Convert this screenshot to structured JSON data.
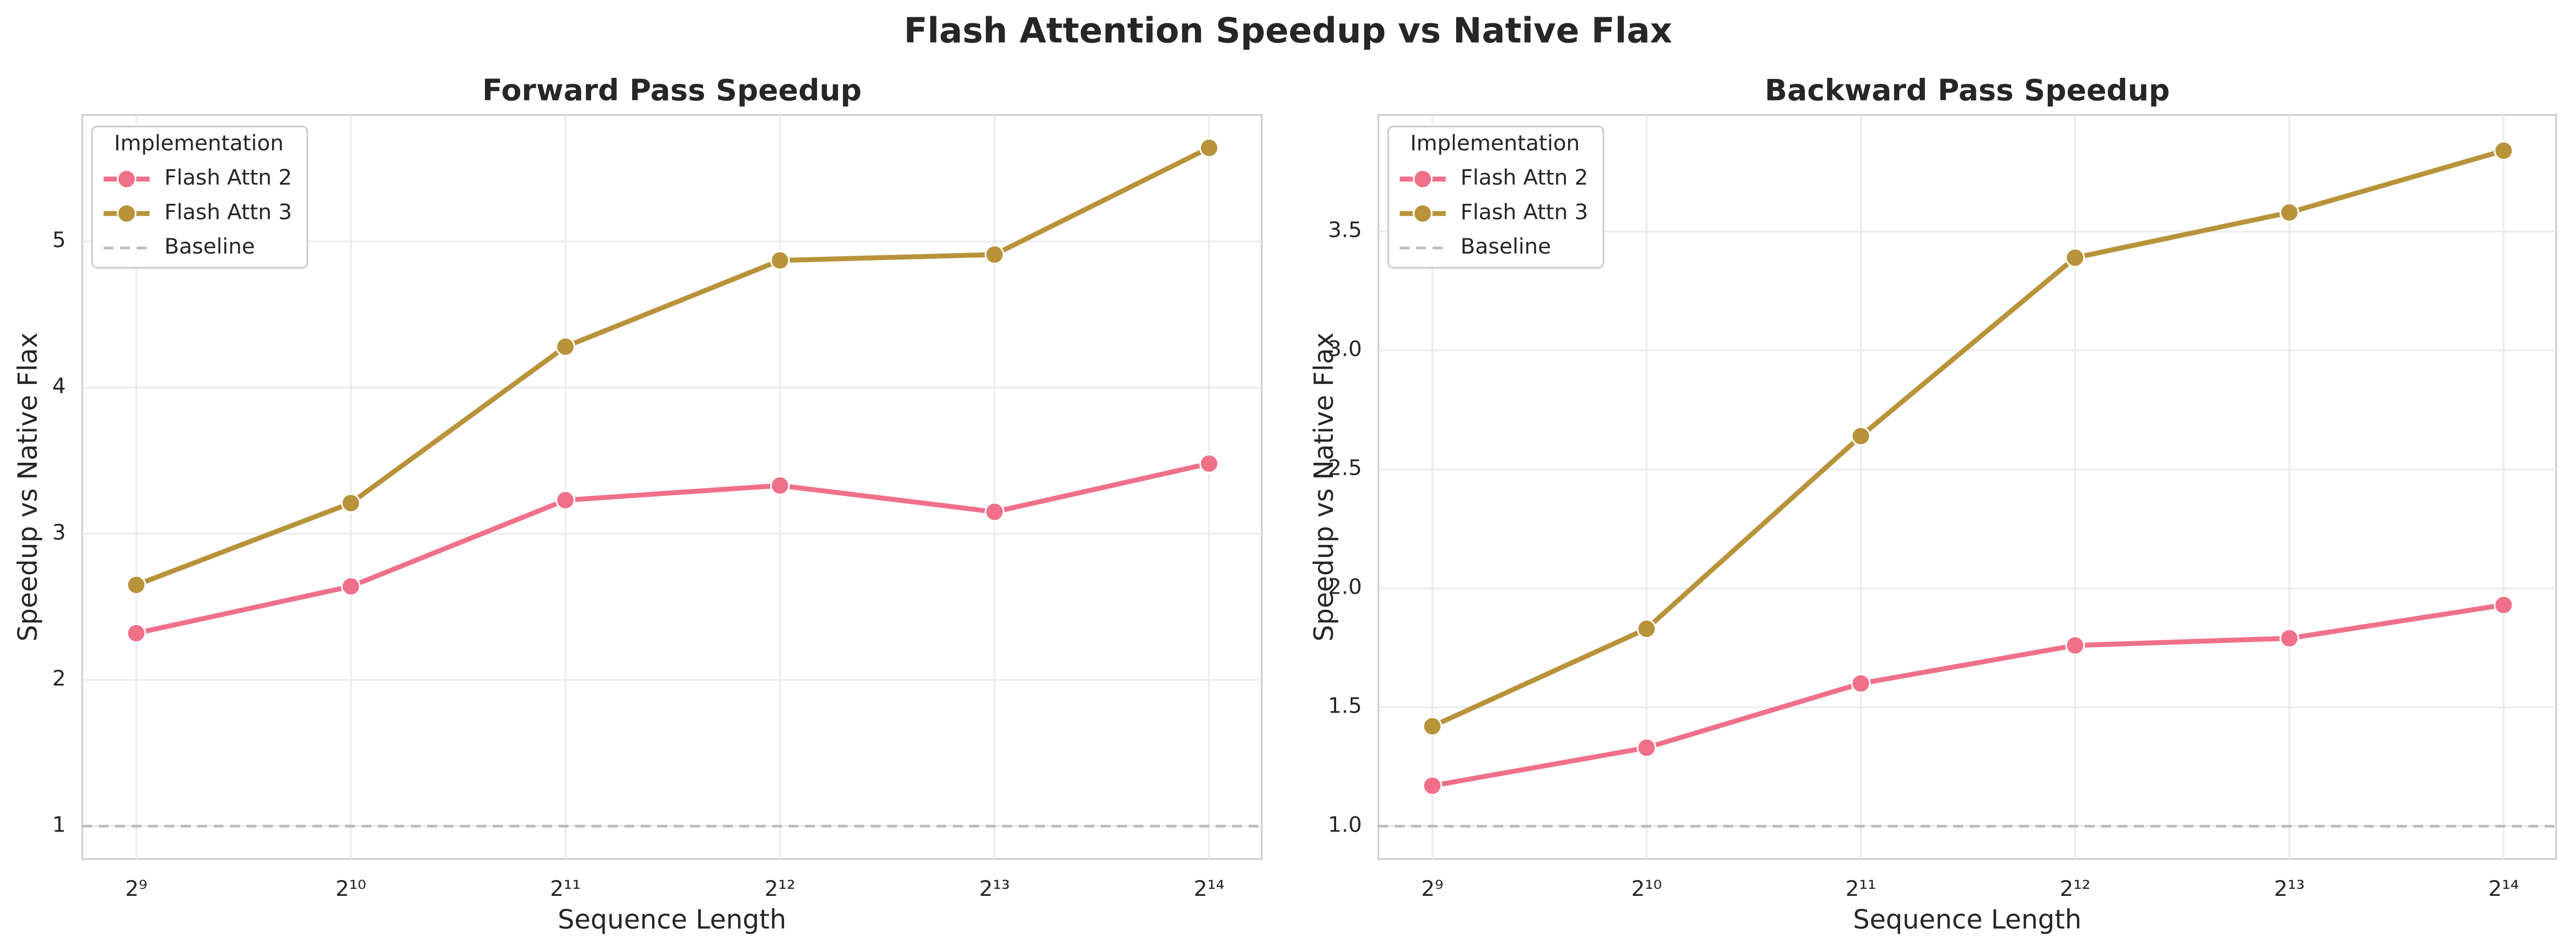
{
  "title": "Flash Attention Speedup vs Native Flax",
  "chart_data": [
    {
      "type": "line",
      "title": "Forward Pass Speedup",
      "xlabel": "Sequence Length",
      "ylabel": "Speedup vs Native Flax",
      "x": [
        512,
        1024,
        2048,
        4096,
        8192,
        16384
      ],
      "xscale": "log",
      "xlim": [
        430,
        19420
      ],
      "xticks": [
        {
          "value": 512,
          "label": "2⁹"
        },
        {
          "value": 1024,
          "label": "2¹⁰"
        },
        {
          "value": 2048,
          "label": "2¹¹"
        },
        {
          "value": 4096,
          "label": "2¹²"
        },
        {
          "value": 8192,
          "label": "2¹³"
        },
        {
          "value": 16384,
          "label": "2¹⁴"
        }
      ],
      "ylim": [
        0.775,
        5.865
      ],
      "yticks": [
        1,
        2,
        3,
        4,
        5
      ],
      "grid": true,
      "legend": "upper left",
      "legend_title": "Implementation",
      "series": [
        {
          "name": "Flash Attn 2",
          "color": "#f0708a",
          "values": [
            2.32,
            2.64,
            3.23,
            3.33,
            3.15,
            3.48
          ]
        },
        {
          "name": "Flash Attn 3",
          "color": "#b8933a",
          "values": [
            2.65,
            3.21,
            4.28,
            4.87,
            4.91,
            5.64
          ]
        }
      ],
      "baseline": {
        "name": "Baseline",
        "value": 1,
        "color": "#bbbbbb"
      }
    },
    {
      "type": "line",
      "title": "Backward Pass Speedup",
      "xlabel": "Sequence Length",
      "ylabel": "Speedup vs Native Flax",
      "x": [
        512,
        1024,
        2048,
        4096,
        8192,
        16384
      ],
      "xscale": "log",
      "xlim": [
        430,
        19420
      ],
      "xticks": [
        {
          "value": 512,
          "label": "2⁹"
        },
        {
          "value": 1024,
          "label": "2¹⁰"
        },
        {
          "value": 2048,
          "label": "2¹¹"
        },
        {
          "value": 4096,
          "label": "2¹²"
        },
        {
          "value": 8192,
          "label": "2¹³"
        },
        {
          "value": 16384,
          "label": "2¹⁴"
        }
      ],
      "ylim": [
        0.862,
        3.99
      ],
      "yticks": [
        {
          "value": 1,
          "label": "1.0"
        },
        1.5,
        {
          "value": 2,
          "label": "2.0"
        },
        2.5,
        {
          "value": 3,
          "label": "3.0"
        },
        3.5
      ],
      "grid": true,
      "legend": "upper left",
      "legend_title": "Implementation",
      "series": [
        {
          "name": "Flash Attn 2",
          "color": "#f0708a",
          "values": [
            1.17,
            1.33,
            1.6,
            1.76,
            1.79,
            1.93
          ]
        },
        {
          "name": "Flash Attn 3",
          "color": "#b8933a",
          "values": [
            1.42,
            1.83,
            2.64,
            3.39,
            3.58,
            3.84
          ]
        }
      ],
      "baseline": {
        "name": "Baseline",
        "value": 1,
        "color": "#bbbbbb"
      }
    }
  ]
}
